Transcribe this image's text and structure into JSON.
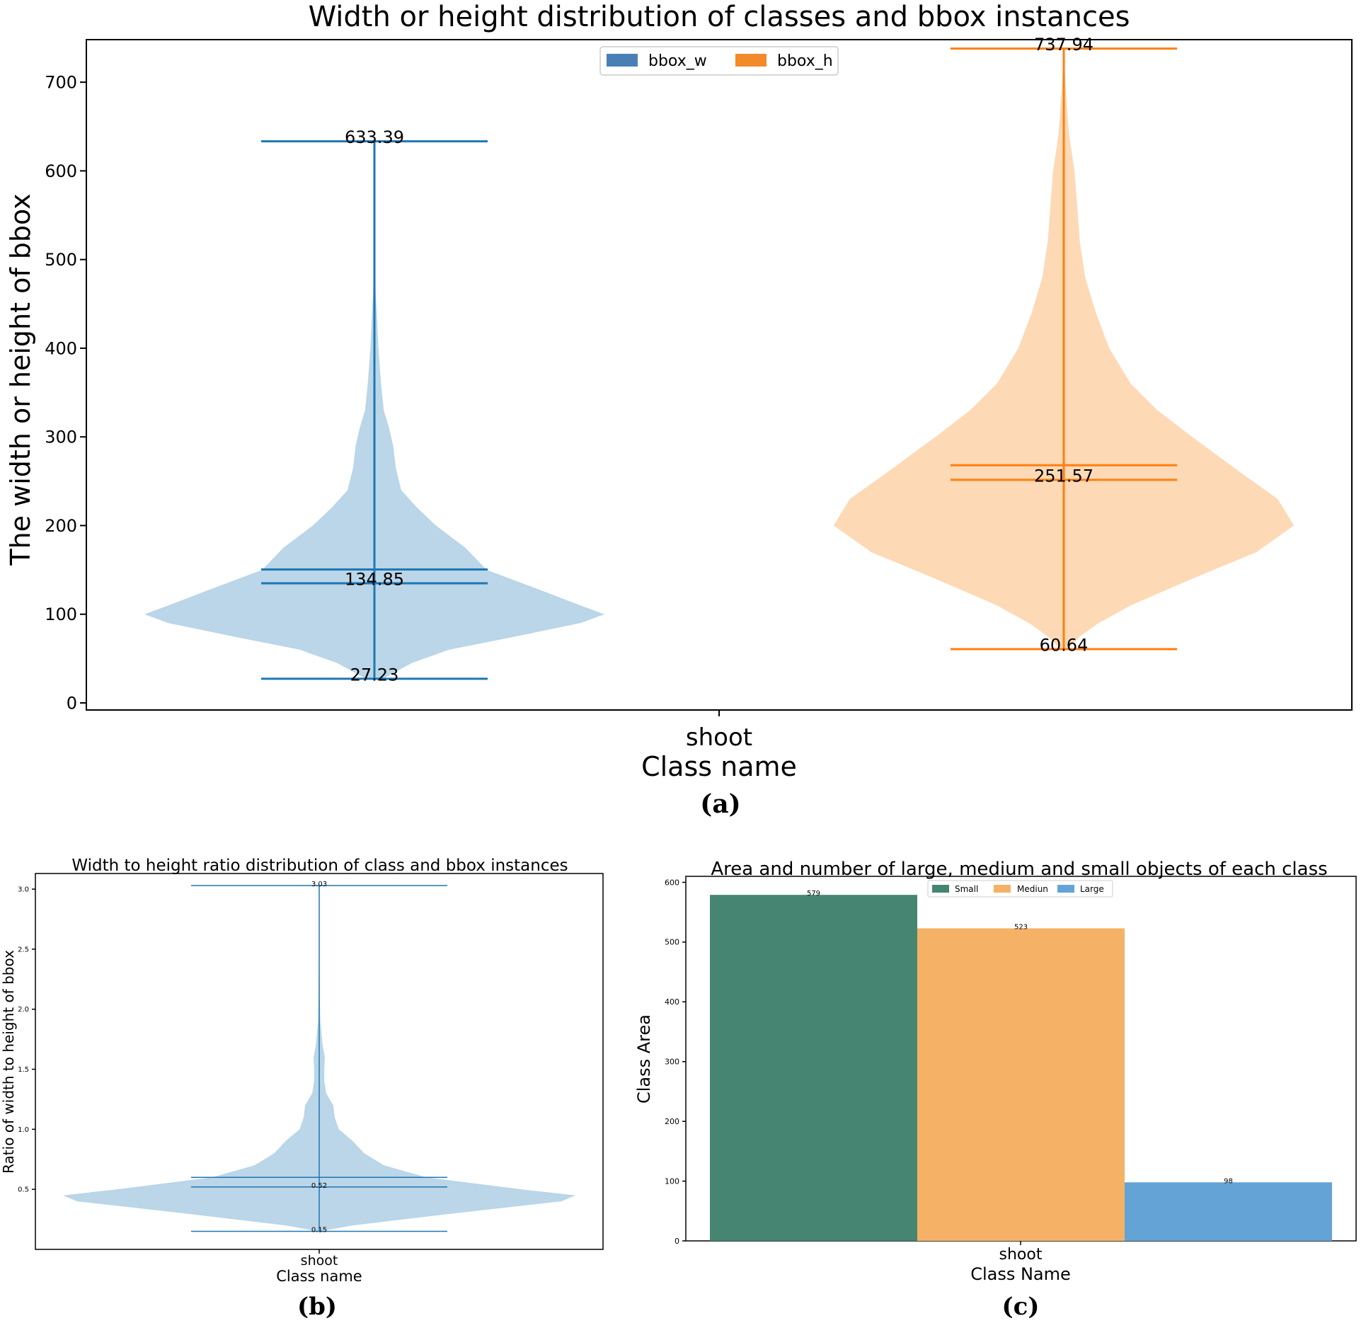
{
  "chart_data": [
    {
      "panel": "a",
      "caption": "(a)",
      "type": "violin",
      "title": "Width or height distribution of classes and bbox instances",
      "xlabel": "Class name",
      "ylabel": "The width or height of bbox",
      "categories": [
        "shoot"
      ],
      "ylim": [
        -8,
        748
      ],
      "yticks": [
        0,
        100,
        200,
        300,
        400,
        500,
        600,
        700
      ],
      "legend": {
        "position": "top-center",
        "entries": [
          "bbox_w",
          "bbox_h"
        ]
      },
      "colors": {
        "bbox_w": "#1f77b4",
        "bbox_h": "#ff7f0e",
        "bbox_w_fill": "#bad6e8",
        "bbox_h_fill": "#fdd9b5",
        "bbox_w_legend": "#4a7fb5",
        "bbox_h_legend": "#f28a2a"
      },
      "series": [
        {
          "name": "bbox_w",
          "min": 27.23,
          "max": 633.39,
          "median": 134.85,
          "mean": 150.5,
          "labels": {
            "min": "27.23",
            "max": "633.39",
            "median": "134.85"
          },
          "density": [
            [
              27,
              0.03
            ],
            [
              45,
              0.14
            ],
            [
              60,
              0.28
            ],
            [
              75,
              0.53
            ],
            [
              90,
              0.77
            ],
            [
              100,
              0.86
            ],
            [
              110,
              0.77
            ],
            [
              125,
              0.64
            ],
            [
              150,
              0.42
            ],
            [
              175,
              0.34
            ],
            [
              200,
              0.23
            ],
            [
              220,
              0.16
            ],
            [
              240,
              0.1
            ],
            [
              265,
              0.08
            ],
            [
              290,
              0.07
            ],
            [
              310,
              0.055
            ],
            [
              330,
              0.035
            ],
            [
              360,
              0.025
            ],
            [
              400,
              0.015
            ],
            [
              440,
              0.009
            ],
            [
              460,
              0.005
            ],
            [
              480,
              0.003
            ],
            [
              520,
              0.002
            ],
            [
              580,
              0.001
            ],
            [
              633,
              0.0
            ]
          ]
        },
        {
          "name": "bbox_h",
          "min": 60.64,
          "max": 737.94,
          "median": 251.57,
          "mean": 268.0,
          "labels": {
            "min": "60.64",
            "max": "737.94",
            "median": "251.57"
          },
          "density": [
            [
              60,
              0.01
            ],
            [
              75,
              0.06
            ],
            [
              90,
              0.13
            ],
            [
              110,
              0.25
            ],
            [
              140,
              0.48
            ],
            [
              170,
              0.72
            ],
            [
              200,
              0.86
            ],
            [
              230,
              0.8
            ],
            [
              260,
              0.66
            ],
            [
              300,
              0.48
            ],
            [
              330,
              0.35
            ],
            [
              360,
              0.25
            ],
            [
              400,
              0.17
            ],
            [
              440,
              0.12
            ],
            [
              480,
              0.08
            ],
            [
              520,
              0.06
            ],
            [
              560,
              0.05
            ],
            [
              600,
              0.04
            ],
            [
              640,
              0.02
            ],
            [
              680,
              0.01
            ],
            [
              700,
              0.006
            ],
            [
              737,
              0.0
            ]
          ]
        }
      ]
    },
    {
      "panel": "b",
      "caption": "(b)",
      "type": "violin",
      "title": "Width to height ratio distribution of class and bbox instances",
      "xlabel": "Class name",
      "ylabel": "Ratio of width to height of bbox",
      "categories": [
        "shoot"
      ],
      "ylim": [
        0.0,
        3.13
      ],
      "yticks": [
        0.5,
        1.0,
        1.5,
        2.0,
        2.5,
        3.0
      ],
      "ytick_labels": [
        "0.5",
        "1.0",
        "1.5",
        "2.0",
        "2.5",
        "3.0"
      ],
      "colors": {
        "line": "#1f77b4",
        "fill": "#bad6e8"
      },
      "series": [
        {
          "name": "ratio",
          "min": 0.15,
          "max": 3.03,
          "median": 0.52,
          "mean": 0.6,
          "labels": {
            "min": "0.15",
            "max": "3.03",
            "median": "0.52"
          },
          "density": [
            [
              0.15,
              0.0
            ],
            [
              0.2,
              0.12
            ],
            [
              0.3,
              0.48
            ],
            [
              0.4,
              0.86
            ],
            [
              0.45,
              0.91
            ],
            [
              0.5,
              0.72
            ],
            [
              0.6,
              0.38
            ],
            [
              0.7,
              0.23
            ],
            [
              0.8,
              0.16
            ],
            [
              0.9,
              0.12
            ],
            [
              1.0,
              0.07
            ],
            [
              1.1,
              0.055
            ],
            [
              1.2,
              0.05
            ],
            [
              1.3,
              0.025
            ],
            [
              1.4,
              0.018
            ],
            [
              1.5,
              0.018
            ],
            [
              1.6,
              0.02
            ],
            [
              1.7,
              0.012
            ],
            [
              1.8,
              0.008
            ],
            [
              1.9,
              0.004
            ],
            [
              2.1,
              0.002
            ],
            [
              2.5,
              0.001
            ],
            [
              3.03,
              0.0
            ]
          ]
        }
      ]
    },
    {
      "panel": "c",
      "caption": "(c)",
      "type": "bar",
      "title": "Area and number of large, medium and small objects of each class",
      "xlabel": "Class Name",
      "ylabel": "Class Area",
      "categories": [
        "shoot"
      ],
      "ylim": [
        0,
        610
      ],
      "yticks": [
        0,
        100,
        200,
        300,
        400,
        500,
        600
      ],
      "legend": {
        "position": "top-center",
        "entries": [
          "Small",
          "Mediun",
          "Large"
        ]
      },
      "series": [
        {
          "name": "Small",
          "values": [
            579
          ],
          "color": "#468572"
        },
        {
          "name": "Mediun",
          "values": [
            523
          ],
          "color": "#f5b266"
        },
        {
          "name": "Large",
          "values": [
            98
          ],
          "color": "#64a3d6"
        }
      ]
    }
  ]
}
